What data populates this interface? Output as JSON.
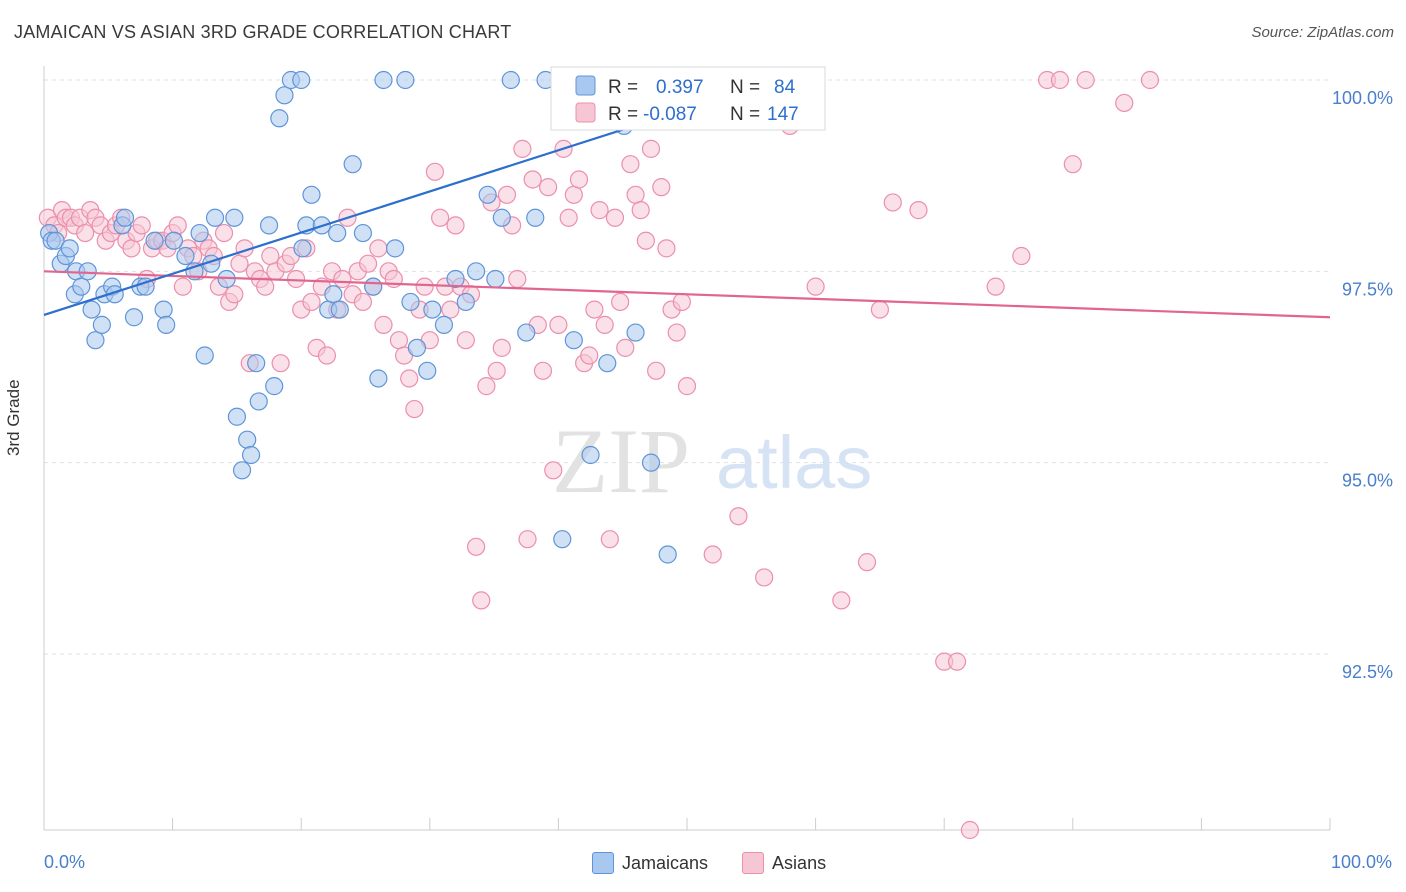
{
  "title": "JAMAICAN VS ASIAN 3RD GRADE CORRELATION CHART",
  "source": "Source: ZipAtlas.com",
  "watermark": {
    "zip": "ZIP",
    "atlas": "atlas"
  },
  "colors": {
    "blue_fill": "#a9c8ef",
    "blue_stroke": "#5f95d8",
    "blue_line": "#2c6fcc",
    "pink_fill": "#f6c6d5",
    "pink_stroke": "#ec8fab",
    "pink_line": "#e0668f",
    "axis_text": "#4a7fcb",
    "grid": "#dde1e8"
  },
  "legend_box": {
    "rows": [
      {
        "r_label": "R =",
        "r_value": "0.397",
        "n_label": "N =",
        "n_value": "84",
        "series": "blue"
      },
      {
        "r_label": "R =",
        "r_value": "-0.087",
        "n_label": "N =",
        "n_value": "147",
        "series": "pink"
      }
    ]
  },
  "legend_bottom": [
    {
      "label": "Jamaicans",
      "series": "blue"
    },
    {
      "label": "Asians",
      "series": "pink"
    }
  ],
  "chart_data": {
    "type": "scatter",
    "title": "JAMAICAN VS ASIAN 3RD GRADE CORRELATION CHART",
    "xlabel": "",
    "ylabel": "3rd Grade",
    "x_tick_labels": [
      "0.0%",
      "100.0%"
    ],
    "y_tick_labels": [
      "100.0%",
      "97.5%",
      "95.0%",
      "92.5%"
    ],
    "y_ticks": [
      100.0,
      97.5,
      95.0,
      92.5
    ],
    "xlim": [
      0,
      100
    ],
    "ylim": [
      90.0,
      100.1
    ],
    "grid": true,
    "legend_position": "top-center",
    "series": [
      {
        "name": "Jamaicans",
        "R": 0.397,
        "N": 84,
        "trend": {
          "x": [
            0,
            50
          ],
          "y": [
            96.93,
            99.62
          ]
        },
        "points": [
          [
            0.4,
            98.0
          ],
          [
            0.6,
            97.9
          ],
          [
            0.9,
            97.9
          ],
          [
            1.3,
            97.6
          ],
          [
            1.7,
            97.7
          ],
          [
            2.0,
            97.8
          ],
          [
            2.4,
            97.2
          ],
          [
            2.5,
            97.5
          ],
          [
            2.9,
            97.3
          ],
          [
            3.4,
            97.5
          ],
          [
            3.7,
            97.0
          ],
          [
            4.0,
            96.6
          ],
          [
            4.5,
            96.8
          ],
          [
            4.7,
            97.2
          ],
          [
            5.3,
            97.3
          ],
          [
            5.5,
            97.2
          ],
          [
            6.1,
            98.1
          ],
          [
            6.3,
            98.2
          ],
          [
            7.0,
            96.9
          ],
          [
            7.5,
            97.3
          ],
          [
            7.9,
            97.3
          ],
          [
            8.6,
            97.9
          ],
          [
            9.3,
            97.0
          ],
          [
            9.5,
            96.8
          ],
          [
            10.1,
            97.9
          ],
          [
            11.0,
            97.7
          ],
          [
            11.7,
            97.5
          ],
          [
            12.1,
            98.0
          ],
          [
            12.5,
            96.4
          ],
          [
            13.0,
            97.6
          ],
          [
            13.3,
            98.2
          ],
          [
            14.2,
            97.4
          ],
          [
            14.8,
            98.2
          ],
          [
            15.0,
            95.6
          ],
          [
            15.4,
            94.9
          ],
          [
            15.8,
            95.3
          ],
          [
            16.1,
            95.1
          ],
          [
            16.5,
            96.3
          ],
          [
            16.7,
            95.8
          ],
          [
            17.5,
            98.1
          ],
          [
            17.9,
            96.0
          ],
          [
            18.3,
            99.5
          ],
          [
            18.7,
            99.8
          ],
          [
            19.2,
            100.0
          ],
          [
            20.0,
            100.0
          ],
          [
            20.1,
            97.8
          ],
          [
            20.4,
            98.1
          ],
          [
            20.8,
            98.5
          ],
          [
            21.6,
            98.1
          ],
          [
            22.1,
            97.0
          ],
          [
            22.5,
            97.2
          ],
          [
            22.8,
            98.0
          ],
          [
            23.0,
            97.0
          ],
          [
            24.0,
            98.9
          ],
          [
            24.8,
            98.0
          ],
          [
            25.6,
            97.3
          ],
          [
            26.0,
            96.1
          ],
          [
            26.4,
            100.0
          ],
          [
            27.3,
            97.8
          ],
          [
            28.1,
            100.0
          ],
          [
            28.5,
            97.1
          ],
          [
            29.0,
            96.5
          ],
          [
            29.8,
            96.2
          ],
          [
            30.2,
            97.0
          ],
          [
            31.1,
            96.8
          ],
          [
            32.0,
            97.4
          ],
          [
            32.8,
            97.1
          ],
          [
            33.6,
            97.5
          ],
          [
            34.5,
            98.5
          ],
          [
            35.1,
            97.4
          ],
          [
            35.6,
            98.2
          ],
          [
            36.3,
            100.0
          ],
          [
            37.5,
            96.7
          ],
          [
            38.2,
            98.2
          ],
          [
            39.0,
            100.0
          ],
          [
            40.3,
            94.0
          ],
          [
            41.2,
            96.6
          ],
          [
            42.5,
            95.1
          ],
          [
            43.8,
            96.3
          ],
          [
            45.1,
            99.4
          ],
          [
            46.0,
            96.7
          ],
          [
            47.2,
            95.0
          ],
          [
            48.5,
            93.8
          ],
          [
            50.0,
            100.0
          ]
        ]
      },
      {
        "name": "Asians",
        "R": -0.087,
        "N": 147,
        "trend": {
          "x": [
            0,
            100
          ],
          "y": [
            97.5,
            96.9
          ]
        },
        "points": [
          [
            0.3,
            98.2
          ],
          [
            0.8,
            98.1
          ],
          [
            1.1,
            98.0
          ],
          [
            1.4,
            98.3
          ],
          [
            1.7,
            98.2
          ],
          [
            2.1,
            98.2
          ],
          [
            2.4,
            98.1
          ],
          [
            2.8,
            98.2
          ],
          [
            3.2,
            98.0
          ],
          [
            3.6,
            98.3
          ],
          [
            4.0,
            98.2
          ],
          [
            4.4,
            98.1
          ],
          [
            4.8,
            97.9
          ],
          [
            5.2,
            98.0
          ],
          [
            5.6,
            98.1
          ],
          [
            6.0,
            98.2
          ],
          [
            6.4,
            97.9
          ],
          [
            6.8,
            97.8
          ],
          [
            7.2,
            98.0
          ],
          [
            7.6,
            98.1
          ],
          [
            8.0,
            97.4
          ],
          [
            8.4,
            97.8
          ],
          [
            8.8,
            97.9
          ],
          [
            9.2,
            97.9
          ],
          [
            9.6,
            97.8
          ],
          [
            10.0,
            98.0
          ],
          [
            10.4,
            98.1
          ],
          [
            10.8,
            97.3
          ],
          [
            11.2,
            97.8
          ],
          [
            11.6,
            97.7
          ],
          [
            12.0,
            97.5
          ],
          [
            12.4,
            97.9
          ],
          [
            12.8,
            97.8
          ],
          [
            13.2,
            97.7
          ],
          [
            13.6,
            97.3
          ],
          [
            14.0,
            98.0
          ],
          [
            14.4,
            97.1
          ],
          [
            14.8,
            97.2
          ],
          [
            15.2,
            97.6
          ],
          [
            15.6,
            97.8
          ],
          [
            16.0,
            96.3
          ],
          [
            16.4,
            97.5
          ],
          [
            16.8,
            97.4
          ],
          [
            17.2,
            97.3
          ],
          [
            17.6,
            97.7
          ],
          [
            18.0,
            97.5
          ],
          [
            18.4,
            96.3
          ],
          [
            18.8,
            97.6
          ],
          [
            19.2,
            97.7
          ],
          [
            19.6,
            97.4
          ],
          [
            20.0,
            97.0
          ],
          [
            20.4,
            97.8
          ],
          [
            20.8,
            97.1
          ],
          [
            21.2,
            96.5
          ],
          [
            21.6,
            97.3
          ],
          [
            22.0,
            96.4
          ],
          [
            22.4,
            97.5
          ],
          [
            22.8,
            97.0
          ],
          [
            23.2,
            97.4
          ],
          [
            23.6,
            98.2
          ],
          [
            24.0,
            97.2
          ],
          [
            24.4,
            97.5
          ],
          [
            24.8,
            97.1
          ],
          [
            25.2,
            97.6
          ],
          [
            25.6,
            97.3
          ],
          [
            26.0,
            97.8
          ],
          [
            26.4,
            96.8
          ],
          [
            26.8,
            97.5
          ],
          [
            27.2,
            97.4
          ],
          [
            27.6,
            96.6
          ],
          [
            28.0,
            96.4
          ],
          [
            28.4,
            96.1
          ],
          [
            28.8,
            95.7
          ],
          [
            29.2,
            97.0
          ],
          [
            29.6,
            97.3
          ],
          [
            30.0,
            96.6
          ],
          [
            30.4,
            98.8
          ],
          [
            30.8,
            98.2
          ],
          [
            31.2,
            97.3
          ],
          [
            31.6,
            97.0
          ],
          [
            32.0,
            98.1
          ],
          [
            32.4,
            97.3
          ],
          [
            32.8,
            96.6
          ],
          [
            33.2,
            97.2
          ],
          [
            33.6,
            93.9
          ],
          [
            34.0,
            93.2
          ],
          [
            34.4,
            96.0
          ],
          [
            34.8,
            98.4
          ],
          [
            35.2,
            96.2
          ],
          [
            35.6,
            96.5
          ],
          [
            36.0,
            98.5
          ],
          [
            36.4,
            98.1
          ],
          [
            36.8,
            97.4
          ],
          [
            37.2,
            99.1
          ],
          [
            37.6,
            94.0
          ],
          [
            38.0,
            98.7
          ],
          [
            38.4,
            96.8
          ],
          [
            38.8,
            96.2
          ],
          [
            39.2,
            98.6
          ],
          [
            39.6,
            94.9
          ],
          [
            40.0,
            96.8
          ],
          [
            40.4,
            99.1
          ],
          [
            40.8,
            98.2
          ],
          [
            41.2,
            98.5
          ],
          [
            41.6,
            98.7
          ],
          [
            42.0,
            96.3
          ],
          [
            42.4,
            96.4
          ],
          [
            42.8,
            97.0
          ],
          [
            43.2,
            98.3
          ],
          [
            43.6,
            96.8
          ],
          [
            44.0,
            94.0
          ],
          [
            44.4,
            98.2
          ],
          [
            44.8,
            97.1
          ],
          [
            45.2,
            96.5
          ],
          [
            45.6,
            98.9
          ],
          [
            46.0,
            98.5
          ],
          [
            46.4,
            98.3
          ],
          [
            46.8,
            97.9
          ],
          [
            47.2,
            99.1
          ],
          [
            47.6,
            96.2
          ],
          [
            48.0,
            98.6
          ],
          [
            48.4,
            97.8
          ],
          [
            48.8,
            97.0
          ],
          [
            49.2,
            96.7
          ],
          [
            49.6,
            97.1
          ],
          [
            50.0,
            96.0
          ],
          [
            52.0,
            93.8
          ],
          [
            54.0,
            94.3
          ],
          [
            56.0,
            93.5
          ],
          [
            58.0,
            99.4
          ],
          [
            60.0,
            97.3
          ],
          [
            62.0,
            93.2
          ],
          [
            64.0,
            93.7
          ],
          [
            65.0,
            97.0
          ],
          [
            66.0,
            98.4
          ],
          [
            68.0,
            98.3
          ],
          [
            70.0,
            92.4
          ],
          [
            71.0,
            92.4
          ],
          [
            72.0,
            90.2
          ],
          [
            74.0,
            97.3
          ],
          [
            76.0,
            97.7
          ],
          [
            78.0,
            100.0
          ],
          [
            79.0,
            100.0
          ],
          [
            80.0,
            98.9
          ],
          [
            81.0,
            100.0
          ],
          [
            84.0,
            99.7
          ],
          [
            86.0,
            100.0
          ]
        ]
      }
    ]
  }
}
